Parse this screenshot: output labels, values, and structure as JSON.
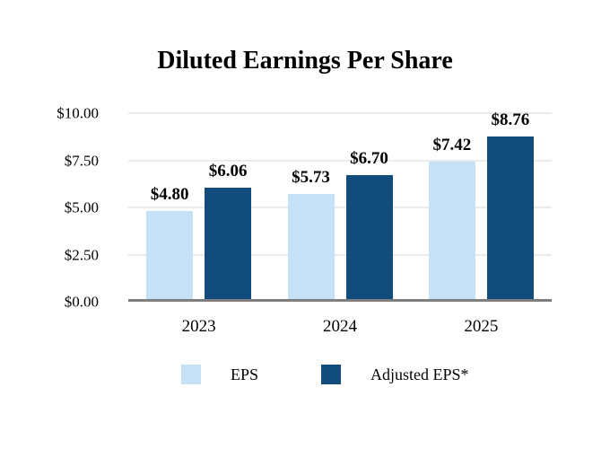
{
  "chart_data": {
    "type": "bar",
    "title": "Diluted Earnings Per Share",
    "categories": [
      "2023",
      "2024",
      "2025"
    ],
    "series": [
      {
        "name": "EPS",
        "color": "#C4E1F8",
        "values": [
          4.8,
          5.73,
          7.42
        ],
        "value_labels": [
          "$4.80",
          "$5.73",
          "$7.42"
        ]
      },
      {
        "name": "Adjusted EPS*",
        "color": "#124C7D",
        "values": [
          6.06,
          6.7,
          8.76
        ],
        "value_labels": [
          "$6.06",
          "$6.70",
          "$8.76"
        ]
      }
    ],
    "y_axis": {
      "min": 0,
      "max": 10,
      "ticks": [
        0,
        2.5,
        5,
        7.5,
        10
      ],
      "tick_labels": [
        "$0.00",
        "$2.50",
        "$5.00",
        "$7.50",
        "$10.00"
      ]
    },
    "grid": true,
    "legend_position": "bottom",
    "colors": {
      "gridline": "#EBEBEB",
      "axis_line": "#7F7F7F",
      "background": "#FFFFFF",
      "text": "#000000"
    }
  }
}
